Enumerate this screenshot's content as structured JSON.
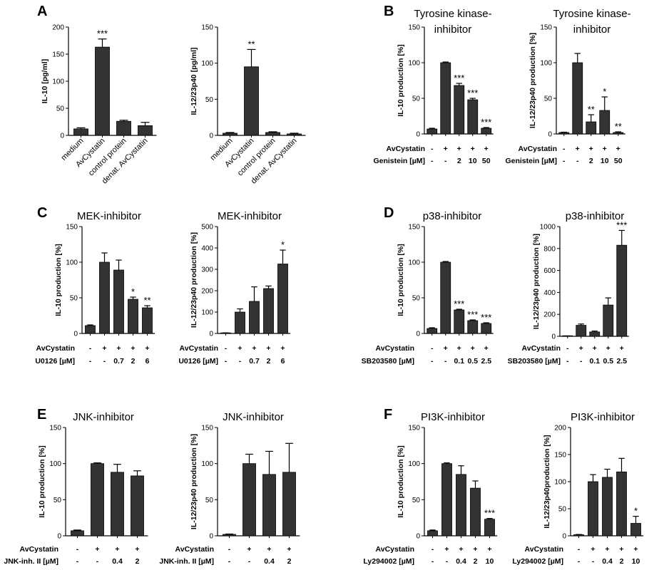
{
  "panels": [
    {
      "id": "A",
      "label": "A"
    },
    {
      "id": "B",
      "label": "B"
    },
    {
      "id": "C",
      "label": "C"
    },
    {
      "id": "D",
      "label": "D"
    },
    {
      "id": "E",
      "label": "E"
    },
    {
      "id": "F",
      "label": "F"
    }
  ],
  "chart_data": [
    {
      "id": "A1",
      "type": "bar",
      "title": "",
      "ylabel": "IL-10 [pg/ml]",
      "categories": [
        "medium",
        "AvCystatin",
        "control protein",
        "denat. AvCystatin"
      ],
      "values": [
        12,
        163,
        26,
        18
      ],
      "errors": [
        2,
        15,
        2,
        6
      ],
      "sig": [
        "",
        "***",
        "",
        ""
      ],
      "ylim": [
        0,
        200
      ],
      "yticks": [
        0,
        50,
        100,
        150,
        200
      ],
      "grid": false
    },
    {
      "id": "A2",
      "type": "bar",
      "title": "",
      "ylabel": "IL-12/23p40 [pg/ml]",
      "categories": [
        "medium",
        "AvCystatin",
        "control protein",
        "denat. AvCystatin"
      ],
      "values": [
        3,
        95,
        4,
        2
      ],
      "errors": [
        1,
        24,
        1,
        1
      ],
      "sig": [
        "",
        "**",
        "",
        ""
      ],
      "ylim": [
        0,
        150
      ],
      "yticks": [
        0,
        50,
        100,
        150
      ],
      "grid": false
    },
    {
      "id": "B1",
      "type": "bar",
      "title": "Tyrosine kinase-inhibitor",
      "ylabel": "IL-10 production [%]",
      "values": [
        7,
        100,
        68,
        48,
        8
      ],
      "errors": [
        1,
        1,
        3,
        2,
        1
      ],
      "sig": [
        "",
        "",
        "***",
        "***",
        "***"
      ],
      "ylim": [
        0,
        150
      ],
      "yticks": [
        0,
        50,
        100,
        150
      ],
      "rows": [
        {
          "label": "AvCystatin",
          "cells": [
            "-",
            "+",
            "+",
            "+",
            "+"
          ]
        },
        {
          "label": "Genistein [µM]",
          "cells": [
            "-",
            "-",
            "2",
            "10",
            "50"
          ]
        }
      ]
    },
    {
      "id": "B2",
      "type": "bar",
      "title": "Tyrosine kinase-inhibitor",
      "ylabel": "IL-12/23p40 production [%]",
      "values": [
        2,
        100,
        17,
        33,
        2
      ],
      "errors": [
        0.5,
        13,
        10,
        19,
        1
      ],
      "sig": [
        "",
        "",
        "**",
        "*",
        "**"
      ],
      "ylim": [
        0,
        150
      ],
      "yticks": [
        0,
        50,
        100,
        150
      ],
      "rows": [
        {
          "label": "AvCystatin",
          "cells": [
            "-",
            "+",
            "+",
            "+",
            "+"
          ]
        },
        {
          "label": "Genistein [µM]",
          "cells": [
            "-",
            "-",
            "2",
            "10",
            "50"
          ]
        }
      ]
    },
    {
      "id": "C1",
      "type": "bar",
      "title": "MEK-inhibitor",
      "ylabel": "IL-10 production [%]",
      "values": [
        11,
        100,
        89,
        48,
        36
      ],
      "errors": [
        1,
        13,
        14,
        3,
        3
      ],
      "sig": [
        "",
        "",
        "",
        "*",
        "**"
      ],
      "ylim": [
        0,
        150
      ],
      "yticks": [
        0,
        50,
        100,
        150
      ],
      "rows": [
        {
          "label": "AvCystatin",
          "cells": [
            "-",
            "+",
            "+",
            "+",
            "+"
          ]
        },
        {
          "label": "U0126 [µM]",
          "cells": [
            "-",
            "-",
            "0.7",
            "2",
            "6"
          ]
        }
      ]
    },
    {
      "id": "C2",
      "type": "bar",
      "title": "MEK-inhibitor",
      "ylabel": "IL-12/23p40 production [%]",
      "values": [
        2,
        100,
        150,
        210,
        325
      ],
      "errors": [
        1,
        15,
        68,
        12,
        65
      ],
      "sig": [
        "",
        "",
        "",
        "",
        "*"
      ],
      "ylim": [
        0,
        500
      ],
      "yticks": [
        0,
        100,
        200,
        300,
        400,
        500
      ],
      "rows": [
        {
          "label": "AvCystatin",
          "cells": [
            "-",
            "+",
            "+",
            "+",
            "+"
          ]
        },
        {
          "label": "U0126 [µM]",
          "cells": [
            "-",
            "-",
            "0.7",
            "2",
            "6"
          ]
        }
      ]
    },
    {
      "id": "D1",
      "type": "bar",
      "title": "p38-inhibitor",
      "ylabel": "IL-10 production [%]",
      "values": [
        7,
        100,
        33,
        18,
        14
      ],
      "errors": [
        1,
        1,
        1,
        1,
        1
      ],
      "sig": [
        "",
        "",
        "***",
        "***",
        "***"
      ],
      "ylim": [
        0,
        150
      ],
      "yticks": [
        0,
        50,
        100,
        150
      ],
      "rows": [
        {
          "label": "AvCystatin",
          "cells": [
            "-",
            "+",
            "+",
            "+",
            "+"
          ]
        },
        {
          "label": "SB203580 [µM]",
          "cells": [
            "-",
            "-",
            "0.1",
            "0.5",
            "2.5"
          ]
        }
      ]
    },
    {
      "id": "D2",
      "type": "bar",
      "title": "p38-inhibitor",
      "ylabel": "IL-12/23p40 production [%]",
      "values": [
        2,
        100,
        40,
        285,
        830
      ],
      "errors": [
        1,
        12,
        8,
        65,
        135
      ],
      "sig": [
        "",
        "",
        "",
        "",
        "***"
      ],
      "ylim": [
        0,
        1000
      ],
      "yticks": [
        0,
        200,
        400,
        600,
        800,
        1000
      ],
      "rows": [
        {
          "label": "AvCystatin",
          "cells": [
            "-",
            "+",
            "+",
            "+",
            "+"
          ]
        },
        {
          "label": "SB203580 [µM]",
          "cells": [
            "-",
            "-",
            "0.1",
            "0.5",
            "2.5"
          ]
        }
      ]
    },
    {
      "id": "E1",
      "type": "bar",
      "title": "JNK-inhibitor",
      "ylabel": "IL-10 production [%]",
      "values": [
        7,
        100,
        88,
        83
      ],
      "errors": [
        1,
        1,
        11,
        7
      ],
      "sig": [
        "",
        "",
        "",
        ""
      ],
      "ylim": [
        0,
        150
      ],
      "yticks": [
        0,
        50,
        100,
        150
      ],
      "rows": [
        {
          "label": "AvCystatin",
          "cells": [
            "-",
            "+",
            "+",
            "+"
          ]
        },
        {
          "label": "JNK-inh. II [µM]",
          "cells": [
            "-",
            "-",
            "0.4",
            "2"
          ]
        }
      ]
    },
    {
      "id": "E2",
      "type": "bar",
      "title": "JNK-inhibitor",
      "ylabel": "IL-12/23p40 production [%]",
      "values": [
        2,
        100,
        85,
        88
      ],
      "errors": [
        0.5,
        13,
        32,
        40
      ],
      "sig": [
        "",
        "",
        "",
        ""
      ],
      "ylim": [
        0,
        150
      ],
      "yticks": [
        0,
        50,
        100,
        150
      ],
      "rows": [
        {
          "label": "AvCystatin",
          "cells": [
            "-",
            "+",
            "+",
            "+"
          ]
        },
        {
          "label": "JNK-inh. II [µM]",
          "cells": [
            "-",
            "-",
            "0.4",
            "2"
          ]
        }
      ]
    },
    {
      "id": "F1",
      "type": "bar",
      "title": "PI3K-inhibitor",
      "ylabel": "IL-10 production [%]",
      "values": [
        7,
        100,
        85,
        66,
        23
      ],
      "errors": [
        1,
        1,
        12,
        10,
        1
      ],
      "sig": [
        "",
        "",
        "",
        "",
        "***"
      ],
      "ylim": [
        0,
        150
      ],
      "yticks": [
        0,
        50,
        100,
        150
      ],
      "rows": [
        {
          "label": "AvCystatin",
          "cells": [
            "-",
            "+",
            "+",
            "+",
            "+"
          ]
        },
        {
          "label": "Ly294002 [µM]",
          "cells": [
            "-",
            "-",
            "0.4",
            "2",
            "10"
          ]
        }
      ]
    },
    {
      "id": "F2",
      "type": "bar",
      "title": "PI3K-inhibitor",
      "ylabel": "IL-12/23p40production [%]",
      "values": [
        2,
        100,
        108,
        118,
        23
      ],
      "errors": [
        0.5,
        13,
        15,
        25,
        13
      ],
      "sig": [
        "",
        "",
        "",
        "",
        "*"
      ],
      "ylim": [
        0,
        200
      ],
      "yticks": [
        0,
        50,
        100,
        150,
        200
      ],
      "rows": [
        {
          "label": "AvCystatin",
          "cells": [
            "-",
            "+",
            "+",
            "+",
            "+"
          ]
        },
        {
          "label": "Ly294002 [µM]",
          "cells": [
            "-",
            "-",
            "0.4",
            "2",
            "10"
          ]
        }
      ]
    }
  ]
}
